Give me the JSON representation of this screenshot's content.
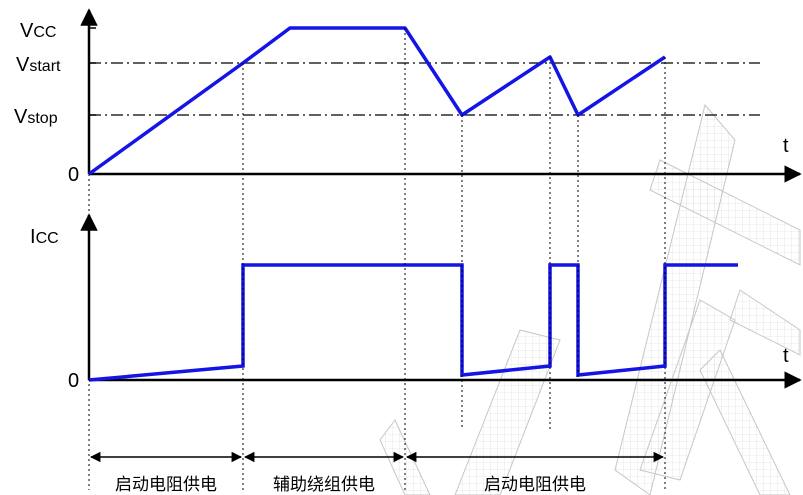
{
  "top_chart": {
    "y_axis_label": "VCC",
    "x_axis_label": "t",
    "origin_label": "0",
    "level_labels": {
      "vstart_main": "V",
      "vstart_sub": "start",
      "vstop_main": "V",
      "vstop_sub": "stop",
      "vcc_main": "V",
      "vcc_sub": "CC"
    }
  },
  "bottom_chart": {
    "y_axis_label_main": "I",
    "y_axis_label_sub": "CC",
    "x_axis_label": "t",
    "origin_label": "0"
  },
  "phases": [
    {
      "label": "启动电阻供电"
    },
    {
      "label": "辅助绕组供电"
    },
    {
      "label": "启动电阻供电"
    }
  ],
  "colors": {
    "waveform": "#1414e6",
    "axis": "#000000",
    "watermark": "#b8b8b8"
  }
}
